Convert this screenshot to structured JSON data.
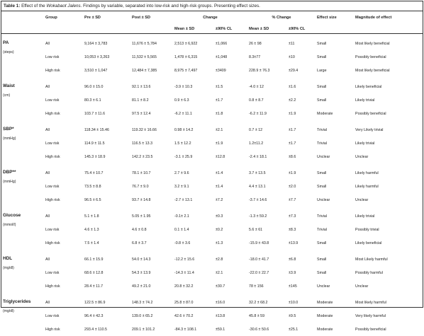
{
  "caption": {
    "label": "Table 1:",
    "text_before": " Effect of the ",
    "program": "Wokabaot Jalens",
    "text_after": ". Findings by variable, separated into low-risk and high-risk groups. Presenting effect sizes."
  },
  "headers": {
    "group": "Group",
    "pre": "Pre ± SD",
    "post": "Post ± SD",
    "change": "Change",
    "pct_change": "% Change",
    "effect_size": "Effect size",
    "magnitude": "Magnitude of effect",
    "mean_sd": "Mean ± SD",
    "cl90": "±90% CL",
    "mean_sd2": "Mean ± SD",
    "cl90_2": "±90% CL"
  },
  "variables": [
    {
      "name": "PA",
      "unit": "(steps)",
      "rows": [
        {
          "group": "All",
          "pre": "9,164 ± 3,783",
          "post": "11,676 ± 5,784",
          "chg": "2,513 ± 6,922",
          "cl": "±1,066",
          "pchg": "26 ± 98",
          "pcl": "±11",
          "es": "Small",
          "mag": "Most likely beneficial"
        },
        {
          "group": "Low risk",
          "pre": "10,053 ± 3,263",
          "post": "11,532 ± 5,565",
          "chg": "1,478 ± 6,315",
          "cl": "±1,048",
          "pchg": "8.3±77",
          "pcl": "±10",
          "es": "Small",
          "mag": "Possibly beneficial"
        },
        {
          "group": "High risk",
          "pre": "3,510 ± 1,047",
          "post": "12,484 ± 7,385",
          "chg": "8,975 ± 7,497",
          "cl": "±3409",
          "pchg": "228.9 ± 76.3",
          "pcl": "±29.4",
          "es": "Large",
          "mag": "Most likely beneficial"
        }
      ]
    },
    {
      "name": "Waist",
      "unit": "(cm)",
      "rows": [
        {
          "group": "All",
          "pre": "96.0 ± 15.0",
          "post": "92.1 ± 13.6",
          "chg": "-3.9 ± 10.3",
          "cl": "±1.5",
          "pchg": "-4.0 ± 12",
          "pcl": "±1.6",
          "es": "Small",
          "mag": "Likely beneficial"
        },
        {
          "group": "Low risk",
          "pre": "80.3 ± 6.1",
          "post": "81.1 ± 8.2",
          "chg": "0.9 ± 6.3",
          "cl": "±1.7",
          "pchg": "0.8 ± 8.7",
          "pcl": "±2.2",
          "es": "Small",
          "mag": "Likely trivial"
        },
        {
          "group": "High risk",
          "pre": "103.7 ± 11.6",
          "post": "97.5 ± 12.4",
          "chg": "-6.2 ± 11.1",
          "cl": "±1.8",
          "pchg": "-6.2 ± 11.9",
          "pcl": "±1.9",
          "es": "Moderate",
          "mag": "Possibly beneficial"
        }
      ]
    },
    {
      "name": "SBP*",
      "unit": "(mmHg)",
      "rows": [
        {
          "group": "All",
          "pre": "118.34 ± 15.46",
          "post": "119.32 ± 16.66",
          "chg": "0.98 ± 14.2",
          "cl": "±2.1",
          "pchg": "0.7 ± 12",
          "pcl": "±1.7",
          "es": "Trivial",
          "mag": "Very Likely trivial"
        },
        {
          "group": "Low risk",
          "pre": "114.9 ± 11.5",
          "post": "116.5 ± 13.3",
          "chg": "1.5 ± 12.2",
          "cl": "±1.9",
          "pchg": "1.2±11.2",
          "pcl": "±1.7",
          "es": "Trivial",
          "mag": "Likely trivial"
        },
        {
          "group": "High risk",
          "pre": "145.3 ± 18.9",
          "post": "142.2 ± 23.5",
          "chg": "-3.1 ± 25.9",
          "cl": "±12.8",
          "pchg": "-2.4 ± 18.1",
          "pcl": "±8.6",
          "es": "Unclear",
          "mag": "Unclear"
        }
      ]
    },
    {
      "name": "DBP**",
      "unit": "(mmHg)",
      "rows": [
        {
          "group": "All",
          "pre": "75.4 ± 10.7",
          "post": "78.1 ± 10.7",
          "chg": "2.7 ± 9.6",
          "cl": "±1.4",
          "pchg": "3.7 ± 13.5",
          "pcl": "±1.9",
          "es": "Small",
          "mag": "Likely harmful"
        },
        {
          "group": "Low risk",
          "pre": "73.5 ± 8.8",
          "post": "76.7 ± 9.0",
          "chg": "3.2 ± 9.1",
          "cl": "±1.4",
          "pchg": "4.4 ± 13.1",
          "pcl": "±2.0",
          "es": "Small",
          "mag": "Likely harmful"
        },
        {
          "group": "High risk",
          "pre": "96.5 ± 6.5",
          "post": "93.7 ± 14.8",
          "chg": "-2.7 ± 13.1",
          "cl": "±7.2",
          "pchg": "-3.7 ± 14.6",
          "pcl": "±7.7",
          "es": "Unclear",
          "mag": "Unclear"
        }
      ]
    },
    {
      "name": "Glucose",
      "unit": "(mmol/l)",
      "rows": [
        {
          "group": "All",
          "pre": "5.1 ± 1.8",
          "post": "5.05 ± 1.95",
          "chg": "-0.1± 2.1",
          "cl": "±0.3",
          "pchg": "-1.3 ± 59.2",
          "pcl": "±7.3",
          "es": "Trivial",
          "mag": "Likely trivial"
        },
        {
          "group": "Low risk",
          "pre": "4.6 ± 1.3",
          "post": "4.6 ± 0.8",
          "chg": "0.1 ± 1.4",
          "cl": "±0.2",
          "pchg": "5.6 ± 61",
          "pcl": "±8.3",
          "es": "Trivial",
          "mag": "Possibly trivial"
        },
        {
          "group": "High risk",
          "pre": "7.5 ± 1.4",
          "post": "6.8 ± 3.7",
          "chg": "-0.8 ± 3.6",
          "cl": "±1.3",
          "pchg": "-15.9 ± 43.8",
          "pcl": "±13.9",
          "es": "Small",
          "mag": "Likely beneficial"
        }
      ]
    },
    {
      "name": "HDL",
      "unit": "(mg/dl)",
      "rows": [
        {
          "group": "All",
          "pre": "66.1 ± 15.9",
          "post": "54.0 ± 14.3",
          "chg": "-12.2 ± 15.6",
          "cl": "±2.8",
          "pchg": "-18.0 ± 41.7",
          "pcl": "±6.8",
          "es": "Small",
          "mag": "Most Likely harmful"
        },
        {
          "group": "Low risk",
          "pre": "68.6 ± 12.8",
          "post": "54.3 ± 13.9",
          "chg": "-14.3 ± 11.4",
          "cl": "±2.1",
          "pchg": "-22.0 ± 22.7",
          "pcl": "±3.9",
          "es": "Small",
          "mag": "Possibly harmful"
        },
        {
          "group": "High risk",
          "pre": "28.4 ± 11.7",
          "post": "49.2 ± 21.0",
          "chg": "20.8 ± 32.2",
          "cl": "±30.7",
          "pchg": "78 ± 156",
          "pcl": "±145",
          "es": "Unclear",
          "mag": "Unclear"
        }
      ]
    },
    {
      "name": "Triglycerides",
      "unit": "(mg/dl)",
      "rows": [
        {
          "group": "All",
          "pre": "122.5 ± 86.9",
          "post": "148.3 ± 74.2",
          "chg": "25.8 ± 87.0",
          "cl": "±16.0",
          "pchg": "32.2 ± 68.2",
          "pcl": "±10.0",
          "es": "Moderate",
          "mag": "Most likely harmful"
        },
        {
          "group": "Low risk",
          "pre": "96.4 ± 42.3",
          "post": "139.0 ± 65.2",
          "chg": "42.6 ± 70.2",
          "cl": "±13.8",
          "pchg": "45.8 ± 59",
          "pcl": "±9.5",
          "es": "Moderate",
          "mag": "Very likely harmful"
        },
        {
          "group": "High risk",
          "pre": "293.4 ± 110.5",
          "post": "209.1 ± 101.2",
          "chg": "-84.3 ± 108.1",
          "cl": "±59.1",
          "pchg": "-30.6 ± 50.6",
          "pcl": "±25.1",
          "es": "Moderate",
          "mag": "Possibly beneficial"
        }
      ]
    }
  ]
}
